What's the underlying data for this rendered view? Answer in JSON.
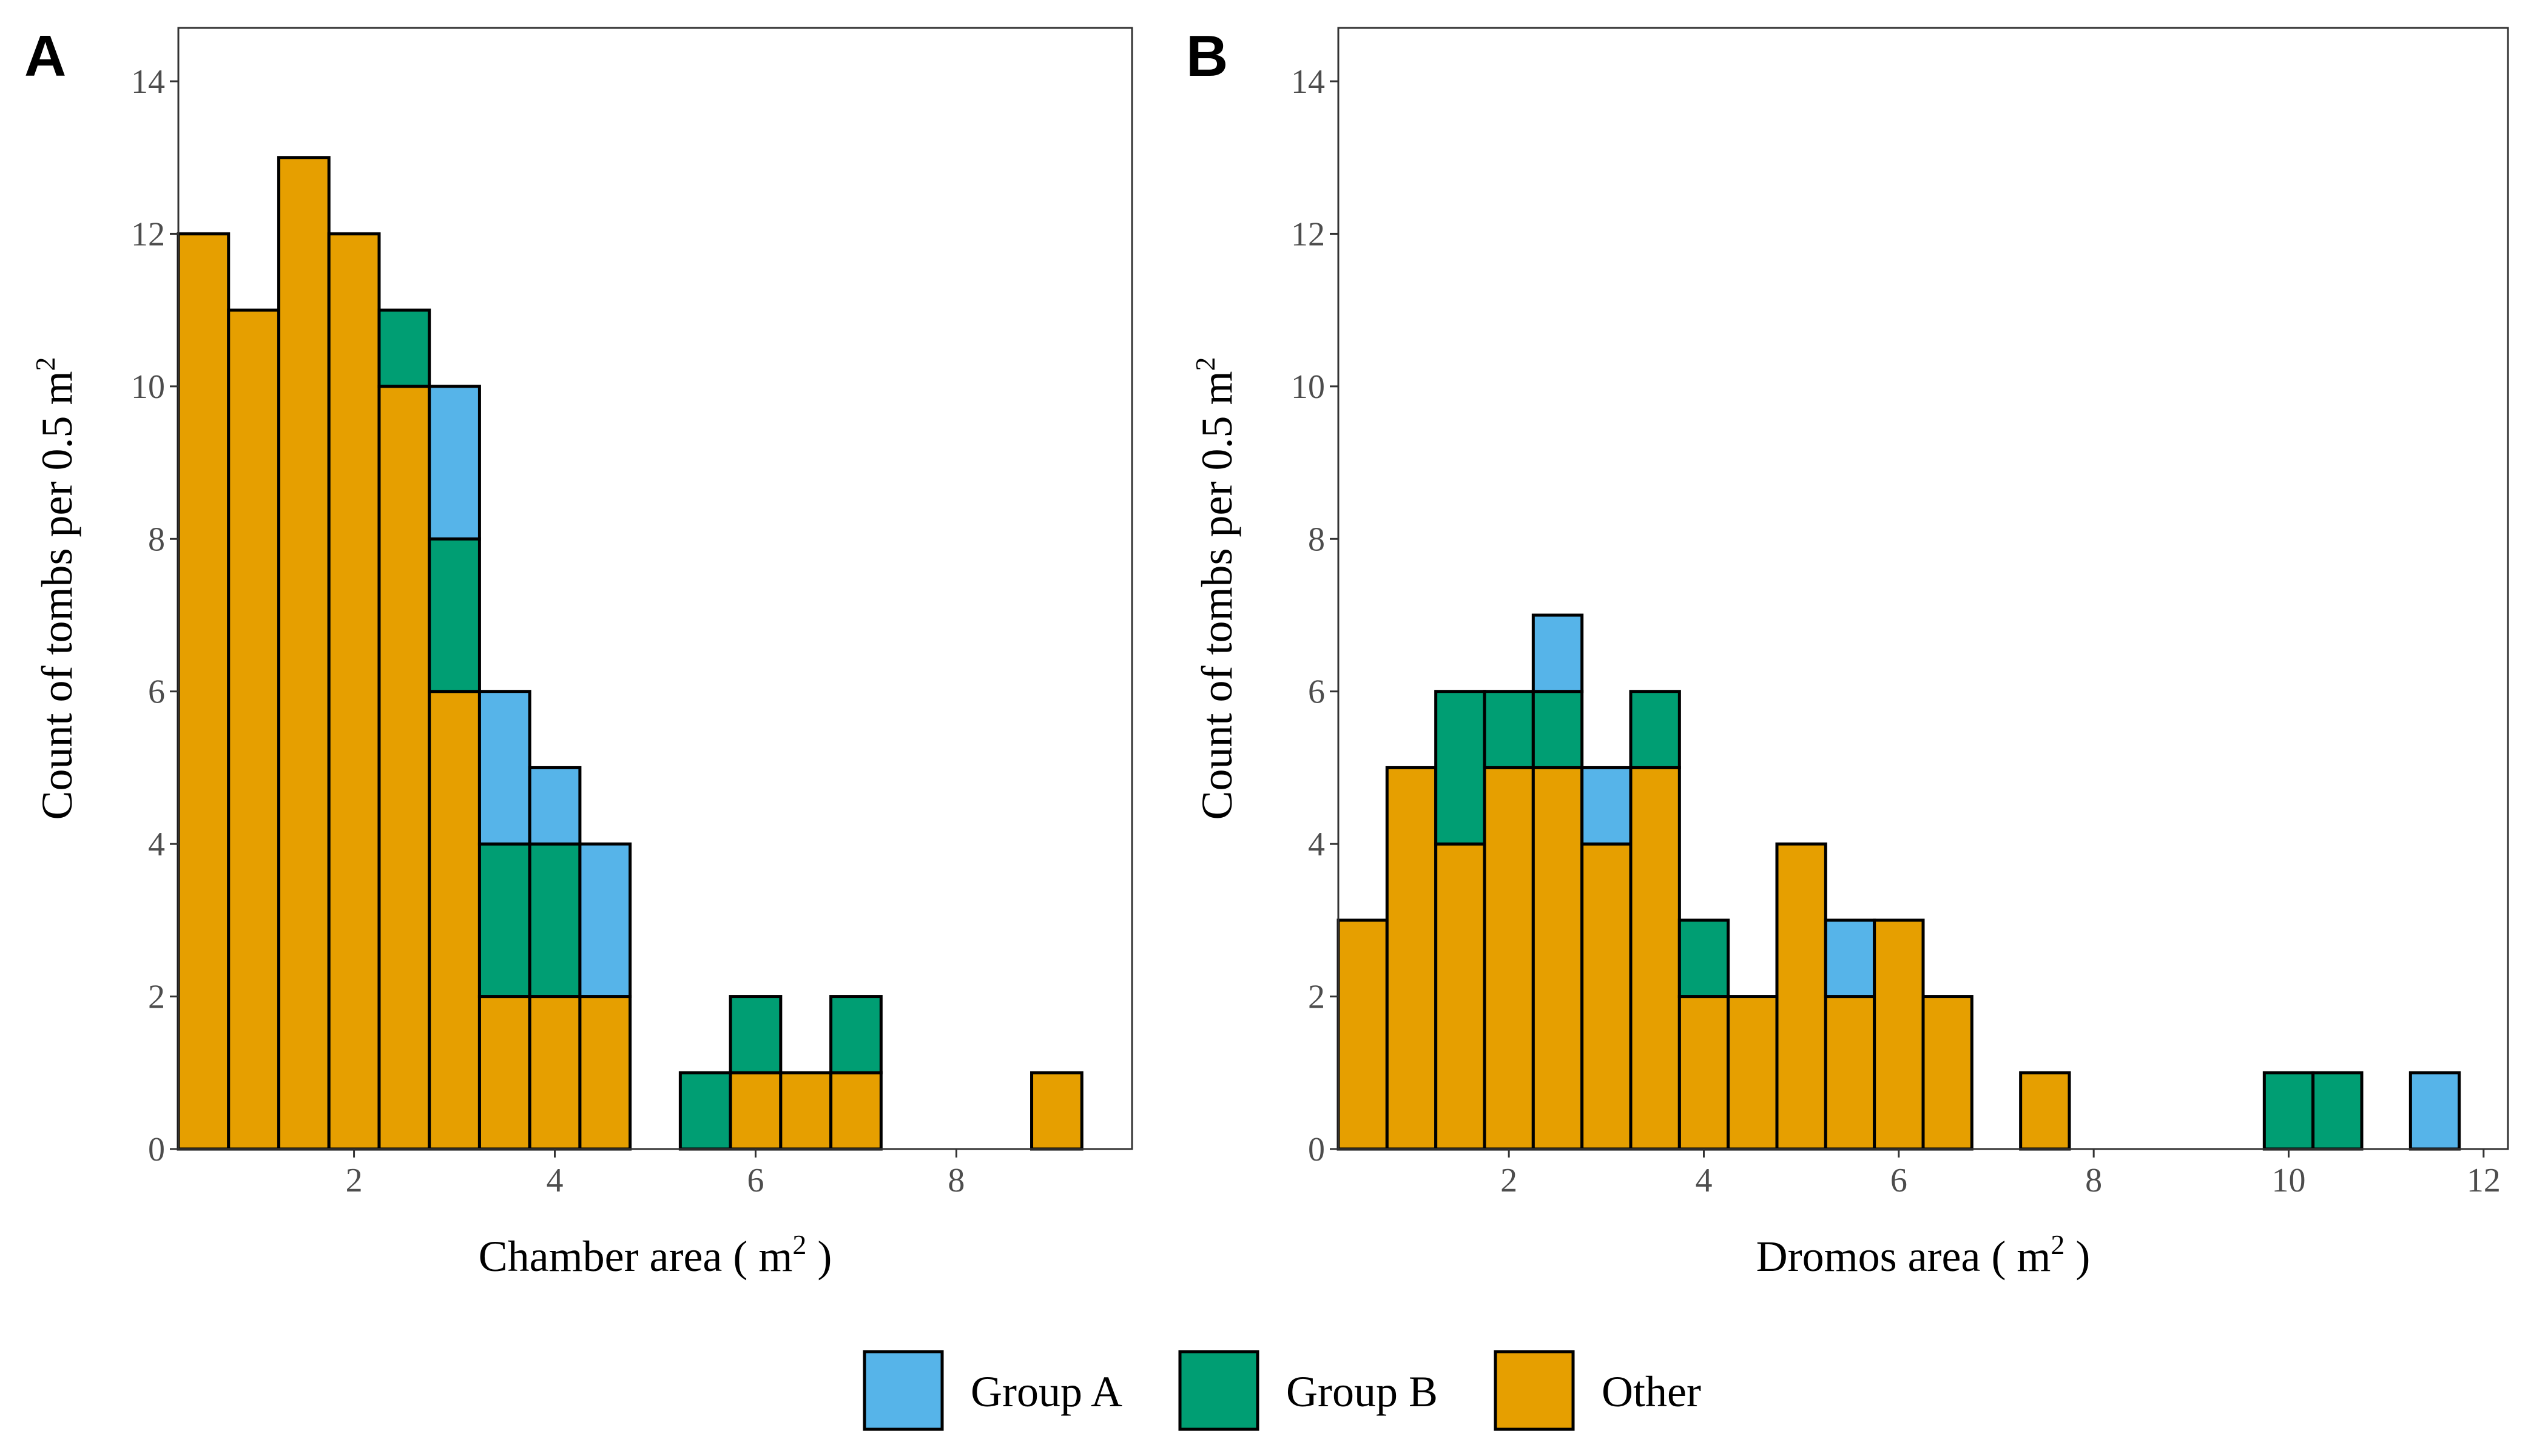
{
  "colors": {
    "Group A": "#56B4E9",
    "Group B": "#009E73",
    "Other": "#E69F00"
  },
  "legend": {
    "items": [
      "Group A",
      "Group B",
      "Other"
    ],
    "placement": "bottom"
  },
  "chart_data": [
    {
      "type": "bar",
      "stacked": true,
      "panel": "A",
      "xlabel": "Chamber area ( m2 )",
      "ylabel": "Count of tombs per 0.5 m2",
      "xlim": [
        0.25,
        9.75
      ],
      "ylim": [
        0,
        14.7
      ],
      "xticks": [
        2,
        4,
        6,
        8
      ],
      "yticks": [
        0,
        2,
        4,
        6,
        8,
        10,
        12,
        14
      ],
      "bin_width": 0.5,
      "x": [
        0.5,
        1.0,
        1.5,
        2.0,
        2.5,
        3.0,
        3.5,
        4.0,
        4.5,
        5.5,
        6.0,
        6.5,
        7.0,
        9.0
      ],
      "series": [
        {
          "name": "Other",
          "values": [
            12,
            11,
            13,
            12,
            10,
            6,
            2,
            2,
            2,
            0,
            1,
            1,
            1,
            1
          ]
        },
        {
          "name": "Group B",
          "values": [
            0,
            0,
            0,
            0,
            1,
            2,
            2,
            2,
            0,
            1,
            1,
            0,
            1,
            0
          ]
        },
        {
          "name": "Group A",
          "values": [
            0,
            0,
            0,
            0,
            0,
            2,
            2,
            1,
            2,
            0,
            0,
            0,
            0,
            0
          ]
        }
      ]
    },
    {
      "type": "bar",
      "stacked": true,
      "panel": "B",
      "xlabel": "Dromos area ( m2 )",
      "ylabel": "Count of tombs per 0.5 m2",
      "xlim": [
        0.25,
        12.25
      ],
      "ylim": [
        0,
        14.7
      ],
      "xticks": [
        2,
        4,
        6,
        8,
        10,
        12
      ],
      "yticks": [
        0,
        2,
        4,
        6,
        8,
        10,
        12,
        14
      ],
      "bin_width": 0.5,
      "x": [
        0.5,
        1.0,
        1.5,
        2.0,
        2.5,
        3.0,
        3.5,
        4.0,
        4.5,
        5.0,
        5.5,
        6.0,
        6.5,
        7.5,
        10.0,
        10.5,
        11.5
      ],
      "series": [
        {
          "name": "Other",
          "values": [
            3,
            5,
            4,
            5,
            5,
            4,
            5,
            2,
            2,
            4,
            2,
            3,
            2,
            1,
            0,
            0,
            0
          ]
        },
        {
          "name": "Group B",
          "values": [
            0,
            0,
            2,
            1,
            1,
            0,
            1,
            1,
            0,
            0,
            0,
            0,
            0,
            0,
            1,
            1,
            0
          ]
        },
        {
          "name": "Group A",
          "values": [
            0,
            0,
            0,
            0,
            1,
            1,
            0,
            0,
            0,
            0,
            1,
            0,
            0,
            0,
            0,
            0,
            1
          ]
        }
      ]
    }
  ]
}
